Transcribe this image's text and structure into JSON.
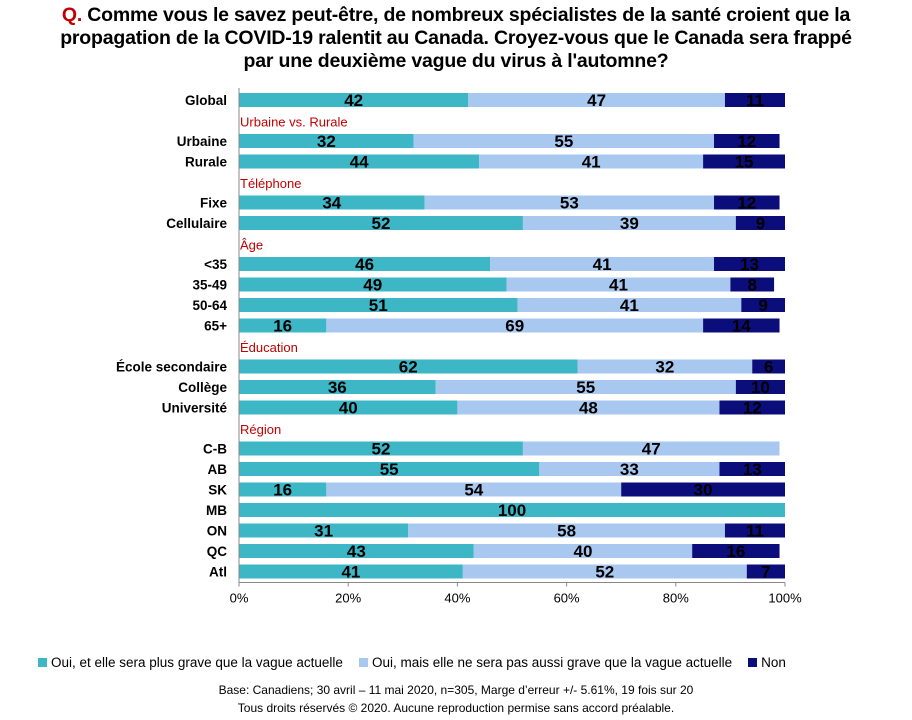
{
  "title": {
    "prefix": "Q.",
    "line1": "Comme vous le savez peut-être, de nombreux spécialistes de la santé croient que la",
    "line2": "propagation de la COVID-19 ralentit au Canada. Croyez-vous que le Canada sera frappé",
    "line3": "par une deuxième vague du virus à l'automne?"
  },
  "colors": {
    "series1": "#3db6c6",
    "series2": "#a9c8f0",
    "series3": "#0b0d7a",
    "group_label": "#c00000"
  },
  "footer": {
    "base": "Base: Canadiens; 30 avril – 11 mai 2020, n=305, Marge d’erreur +/- 5.61%, 19 fois sur 20",
    "rights": "Tous droits réservés © 2020. Aucune reproduction permise sans accord préalable."
  },
  "chart_data": {
    "type": "bar",
    "orientation": "horizontal",
    "stacked": true,
    "xlim": [
      0,
      100
    ],
    "xticks": [
      "0%",
      "20%",
      "40%",
      "60%",
      "80%",
      "100%"
    ],
    "legend_position": "bottom",
    "series_names": [
      "Oui, et elle sera plus grave que la vague actuelle",
      "Oui, mais elle ne sera pas aussi grave que la vague actuelle",
      "Non"
    ],
    "groups": [
      {
        "label": "",
        "rows": [
          {
            "category": "Global",
            "values": [
              42,
              47,
              11
            ]
          }
        ]
      },
      {
        "label": "Urbaine vs. Rurale",
        "rows": [
          {
            "category": "Urbaine",
            "values": [
              32,
              55,
              12
            ]
          },
          {
            "category": "Rurale",
            "values": [
              44,
              41,
              15
            ]
          }
        ]
      },
      {
        "label": "Téléphone",
        "rows": [
          {
            "category": "Fixe",
            "values": [
              34,
              53,
              12
            ]
          },
          {
            "category": "Cellulaire",
            "values": [
              52,
              39,
              9
            ]
          }
        ]
      },
      {
        "label": "Âge",
        "rows": [
          {
            "category": "<35",
            "values": [
              46,
              41,
              13
            ]
          },
          {
            "category": "35-49",
            "values": [
              49,
              41,
              8
            ]
          },
          {
            "category": "50-64",
            "values": [
              51,
              41,
              9
            ]
          },
          {
            "category": "65+",
            "values": [
              16,
              69,
              14
            ]
          }
        ]
      },
      {
        "label": "Éducation",
        "rows": [
          {
            "category": "École secondaire",
            "values": [
              62,
              32,
              6
            ]
          },
          {
            "category": "Collège",
            "values": [
              36,
              55,
              10
            ]
          },
          {
            "category": "Université",
            "values": [
              40,
              48,
              12
            ]
          }
        ]
      },
      {
        "label": "Région",
        "rows": [
          {
            "category": "C-B",
            "values": [
              52,
              47,
              0
            ]
          },
          {
            "category": "AB",
            "values": [
              55,
              33,
              13
            ]
          },
          {
            "category": "SK",
            "values": [
              16,
              54,
              30
            ]
          },
          {
            "category": "MB",
            "values": [
              100,
              0,
              0
            ]
          },
          {
            "category": "ON",
            "values": [
              31,
              58,
              11
            ]
          },
          {
            "category": "QC",
            "values": [
              43,
              40,
              16
            ]
          },
          {
            "category": "Atl",
            "values": [
              41,
              52,
              7
            ]
          }
        ]
      }
    ]
  }
}
